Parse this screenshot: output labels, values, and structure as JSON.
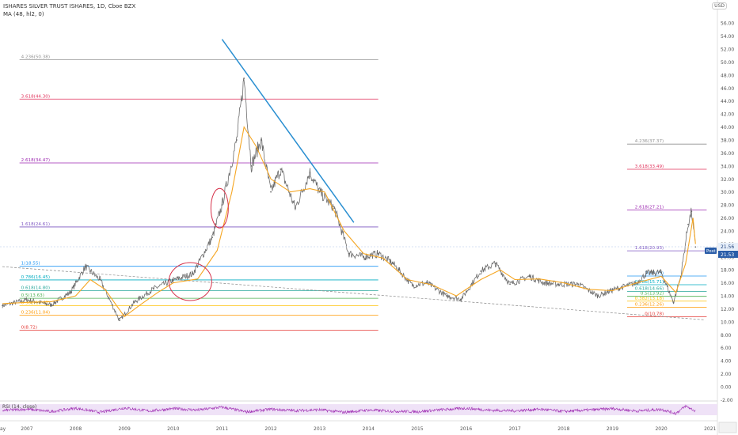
{
  "header": {
    "title": "ISHARES SILVER TRUST ISHARES, 1D, Cboe BZX",
    "indicator": "MA (48, hl2, 0)",
    "currency_button": "USD",
    "rsi_label": "RSI (14, close)"
  },
  "colors": {
    "price_bars": "#6b6b6b",
    "ma_line": "#f5a623",
    "trendline": "#2a8fd1",
    "ellipse": "#d6324a",
    "post_badge": "#2a5da8",
    "rsi_line": "#9c27b0",
    "rsi_band": "#efe2f7"
  },
  "chart_data": {
    "type": "line",
    "title": "ISHARES SILVER TRUST ISHARES, 1D, Cboe BZX",
    "series": [
      {
        "name": "ISHARES SILVER TRUST ISHARES",
        "x": [
          2006.5,
          2007.0,
          2007.5,
          2007.9,
          2008.2,
          2008.5,
          2008.9,
          2009.2,
          2009.6,
          2010.0,
          2010.4,
          2010.8,
          2011.0,
          2011.3,
          2011.45,
          2011.6,
          2011.8,
          2012.0,
          2012.2,
          2012.5,
          2012.8,
          2013.0,
          2013.3,
          2013.6,
          2013.9,
          2014.2,
          2014.5,
          2014.9,
          2015.2,
          2015.6,
          2015.9,
          2016.3,
          2016.6,
          2016.9,
          2017.3,
          2017.6,
          2017.9,
          2018.3,
          2018.7,
          2019.0,
          2019.5,
          2019.7,
          2020.0,
          2020.25,
          2020.4,
          2020.55,
          2020.62,
          2020.7
        ],
        "y": [
          12.5,
          13.4,
          12.6,
          14.6,
          18.5,
          16.5,
          10.2,
          13.0,
          15.1,
          16.4,
          17.4,
          23.0,
          28.0,
          38.0,
          47.5,
          34.0,
          38.0,
          30.0,
          33.5,
          27.5,
          33.0,
          30.0,
          27.5,
          20.5,
          20.0,
          20.5,
          19.0,
          15.6,
          16.0,
          14.0,
          13.5,
          17.8,
          19.0,
          15.8,
          17.0,
          16.0,
          15.8,
          15.8,
          14.0,
          14.9,
          16.0,
          17.5,
          17.6,
          13.0,
          17.0,
          25.0,
          27.0,
          21.53
        ]
      },
      {
        "name": "MA (48, hl2, 0)",
        "x": [
          2006.5,
          2007.0,
          2007.5,
          2008.0,
          2008.3,
          2008.6,
          2009.0,
          2009.3,
          2009.7,
          2010.0,
          2010.5,
          2010.9,
          2011.2,
          2011.45,
          2011.7,
          2012.0,
          2012.4,
          2012.8,
          2013.1,
          2013.5,
          2013.9,
          2014.3,
          2014.8,
          2015.3,
          2015.8,
          2016.3,
          2016.7,
          2017.0,
          2017.5,
          2018.0,
          2018.5,
          2019.0,
          2019.5,
          2020.0,
          2020.3,
          2020.5,
          2020.65,
          2020.7
        ],
        "y": [
          12.8,
          13.0,
          13.1,
          14.0,
          16.5,
          15.0,
          10.8,
          12.5,
          14.6,
          16.0,
          16.6,
          21.0,
          30.0,
          40.0,
          37.0,
          32.0,
          30.0,
          30.5,
          30.0,
          24.0,
          20.5,
          19.8,
          16.5,
          15.7,
          14.0,
          16.5,
          18.0,
          16.5,
          16.6,
          16.0,
          15.0,
          14.8,
          16.0,
          17.0,
          14.5,
          19.0,
          26.0,
          22.0
        ]
      },
      {
        "name": "RSI (14, close)",
        "x": [
          2006.5,
          2007.0,
          2007.5,
          2008.0,
          2008.5,
          2009.0,
          2009.5,
          2010.0,
          2010.5,
          2011.0,
          2011.5,
          2012.0,
          2012.5,
          2013.0,
          2013.5,
          2014.0,
          2014.5,
          2015.0,
          2015.5,
          2016.0,
          2016.5,
          2017.0,
          2017.5,
          2018.0,
          2018.5,
          2019.0,
          2019.5,
          2020.0,
          2020.3,
          2020.5,
          2020.7
        ],
        "y": [
          48,
          55,
          42,
          60,
          38,
          62,
          45,
          58,
          50,
          66,
          40,
          55,
          47,
          52,
          38,
          50,
          44,
          41,
          52,
          60,
          49,
          46,
          55,
          43,
          50,
          58,
          45,
          54,
          32,
          72,
          45
        ]
      }
    ],
    "ylim": [
      0,
      57
    ],
    "xlim": [
      2006.45,
      2021.15
    ],
    "yticks": [
      "0.00",
      "2.00",
      "4.00",
      "6.00",
      "8.00",
      "10.00",
      "12.00",
      "14.00",
      "16.00",
      "18.00",
      "20.00",
      "22.00",
      "24.00",
      "26.00",
      "28.00",
      "30.00",
      "32.00",
      "34.00",
      "36.00",
      "38.00",
      "40.00",
      "42.00",
      "44.00",
      "46.00",
      "48.00",
      "50.00",
      "52.00",
      "54.00",
      "56.00"
    ],
    "ytick_negative": "-2.00",
    "xticks": [
      "2007",
      "2008",
      "2009",
      "2010",
      "2011",
      "2012",
      "2013",
      "2014",
      "2015",
      "2016",
      "2017",
      "2018",
      "2019",
      "2020",
      "2021"
    ],
    "xtick_edge": "ay",
    "fib_sets": [
      {
        "levels": [
          {
            "label": "4.236(50.38)",
            "value": 50.38,
            "color": "#909090"
          },
          {
            "label": "3.618(44.30)",
            "value": 44.3,
            "color": "#e0305a"
          },
          {
            "label": "2.618(34.47)",
            "value": 34.47,
            "color": "#9c27b0"
          },
          {
            "label": "1.618(24.61)",
            "value": 24.61,
            "color": "#7e57c2"
          },
          {
            "label": "1(18.55)",
            "value": 18.55,
            "color": "#2196f3"
          },
          {
            "label": "0.786(16.45)",
            "value": 16.45,
            "color": "#00acc1"
          },
          {
            "label": "0.618(14.80)",
            "value": 14.8,
            "color": "#26a69a"
          },
          {
            "label": "0.5(13.63)",
            "value": 13.63,
            "color": "#4caf50"
          },
          {
            "label": "0.382(12.47)",
            "value": 12.47,
            "color": "#ffc107"
          },
          {
            "label": "0.236(11.04)",
            "value": 11.04,
            "color": "#ff9800"
          },
          {
            "label": "0(8.72)",
            "value": 8.72,
            "color": "#e53935"
          }
        ]
      },
      {
        "levels": [
          {
            "label": "4.236(37.37)",
            "value": 37.37,
            "color": "#909090"
          },
          {
            "label": "3.618(33.49)",
            "value": 33.49,
            "color": "#e0305a"
          },
          {
            "label": "2.618(27.21)",
            "value": 27.21,
            "color": "#9c27b0"
          },
          {
            "label": "1.618(20.93)",
            "value": 20.93,
            "color": "#7e57c2"
          },
          {
            "label": "1(17.05)",
            "value": 17.05,
            "color": "#2196f3"
          },
          {
            "label": "0.786(15.71)",
            "value": 15.71,
            "color": "#00acc1"
          },
          {
            "label": "0.618(14.66)",
            "value": 14.66,
            "color": "#26a69a"
          },
          {
            "label": "0.5(13.92)",
            "value": 13.92,
            "color": "#4caf50"
          },
          {
            "label": "0.382(13.18)",
            "value": 13.18,
            "color": "#ffc107"
          },
          {
            "label": "0.236(12.26)",
            "value": 12.26,
            "color": "#ff9800"
          },
          {
            "label": "0(10.78)",
            "value": 10.78,
            "color": "#e53935"
          }
        ]
      }
    ],
    "trendlines": [
      {
        "name": "resistance",
        "x": [
          2011.0,
          2013.7
        ],
        "y": [
          53.5,
          25.3
        ]
      },
      {
        "name": "support",
        "x": [
          2006.5,
          2020.9
        ],
        "y": [
          18.5,
          10.3
        ]
      }
    ],
    "price_labels": [
      {
        "text": "21.56",
        "value": 21.56
      },
      {
        "text": "21.53",
        "value": 21.53,
        "badge": "Post"
      }
    ]
  }
}
